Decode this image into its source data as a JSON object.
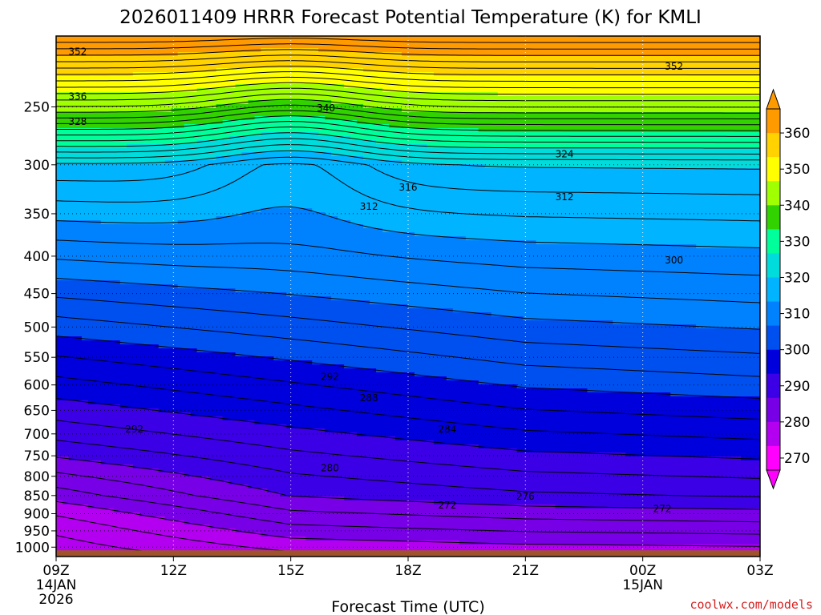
{
  "chart_data": {
    "type": "contour",
    "title": "2026011409 HRRR Forecast Potential Temperature (K) for KMLI",
    "xlabel": "Forecast Time (UTC)",
    "ylabel": "",
    "y_scale": "log",
    "ylim": [
      1030,
      200
    ],
    "y_ticks": [
      "250",
      "300",
      "350",
      "400",
      "450",
      "500",
      "550",
      "600",
      "650",
      "700",
      "750",
      "800",
      "850",
      "900",
      "950",
      "1000"
    ],
    "x_ticks": [
      {
        "label": "09Z",
        "sub1": "14JAN",
        "sub2": "2026"
      },
      {
        "label": "12Z",
        "sub1": "",
        "sub2": ""
      },
      {
        "label": "15Z",
        "sub1": "",
        "sub2": ""
      },
      {
        "label": "18Z",
        "sub1": "",
        "sub2": ""
      },
      {
        "label": "21Z",
        "sub1": "",
        "sub2": ""
      },
      {
        "label": "00Z",
        "sub1": "15JAN",
        "sub2": ""
      },
      {
        "label": "03Z",
        "sub1": "",
        "sub2": ""
      }
    ],
    "colorbar": {
      "ticks": [
        "360",
        "350",
        "340",
        "330",
        "320",
        "310",
        "300",
        "290",
        "280",
        "270"
      ],
      "colors": [
        "#ff9a00",
        "#ffd200",
        "#ffff00",
        "#a0ff00",
        "#32d200",
        "#00ff9a",
        "#00dcdc",
        "#00b4ff",
        "#0082ff",
        "#0050f0",
        "#0000dc",
        "#3c00e6",
        "#7800e6",
        "#b400f0",
        "#ff00ff"
      ]
    },
    "contour_labels": [
      {
        "text": "352",
        "t": 0.55,
        "p": 210
      },
      {
        "text": "352",
        "t": 15.8,
        "p": 220
      },
      {
        "text": "336",
        "t": 0.55,
        "p": 242
      },
      {
        "text": "340",
        "t": 6.9,
        "p": 251
      },
      {
        "text": "328",
        "t": 0.55,
        "p": 262
      },
      {
        "text": "324",
        "t": 13.0,
        "p": 290
      },
      {
        "text": "316",
        "t": 9.0,
        "p": 322
      },
      {
        "text": "312",
        "t": 13.0,
        "p": 332
      },
      {
        "text": "312",
        "t": 8.0,
        "p": 342
      },
      {
        "text": "300",
        "t": 15.8,
        "p": 405
      },
      {
        "text": "292",
        "t": 7.0,
        "p": 585
      },
      {
        "text": "288",
        "t": 8.0,
        "p": 625
      },
      {
        "text": "292",
        "t": 2.0,
        "p": 690
      },
      {
        "text": "284",
        "t": 10.0,
        "p": 690
      },
      {
        "text": "280",
        "t": 7.0,
        "p": 780
      },
      {
        "text": "276",
        "t": 12.0,
        "p": 852
      },
      {
        "text": "272",
        "t": 10.0,
        "p": 877
      },
      {
        "text": "272",
        "t": 15.5,
        "p": 887
      }
    ],
    "credit": "coolwx.com/models"
  }
}
